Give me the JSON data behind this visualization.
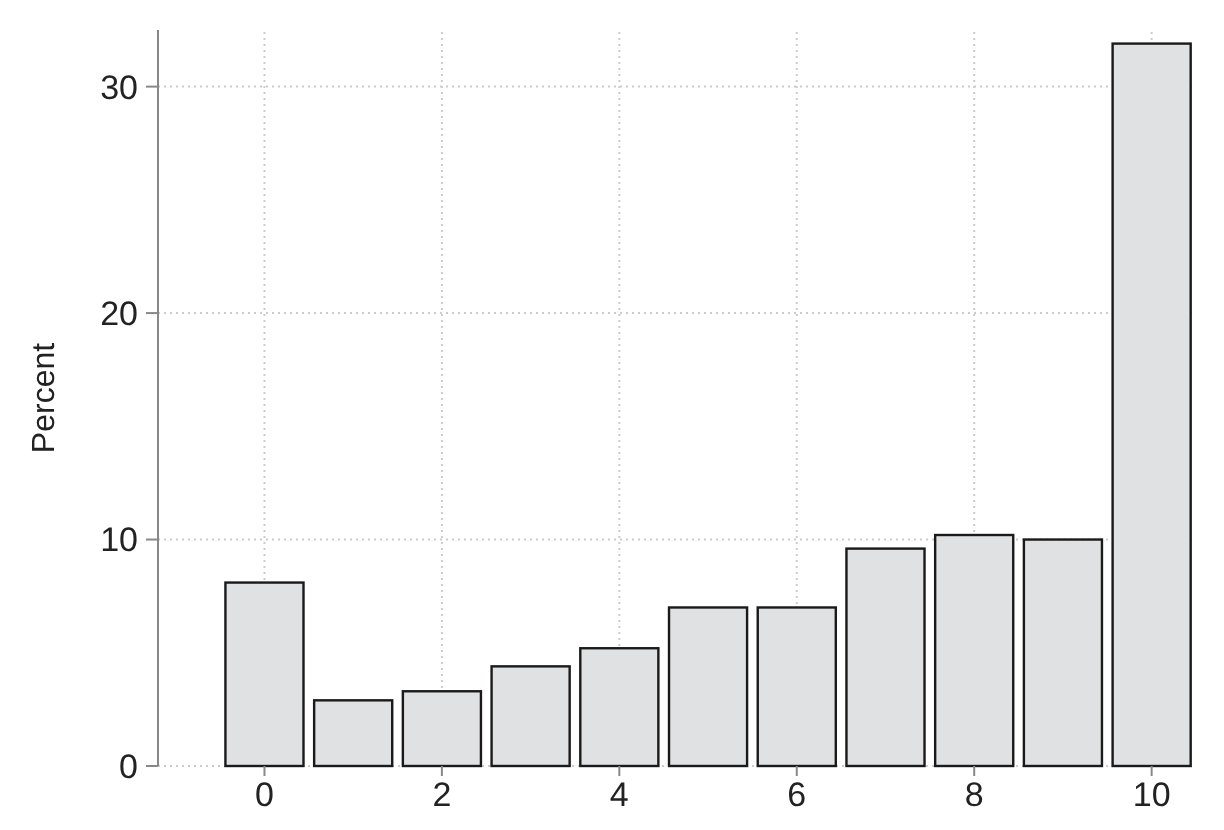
{
  "chart_data": {
    "type": "bar",
    "ylabel": "Percent",
    "x": [
      0,
      1,
      2,
      3,
      4,
      5,
      6,
      7,
      8,
      9,
      10
    ],
    "values": [
      8.1,
      2.9,
      3.3,
      4.4,
      5.2,
      7.0,
      7.0,
      9.6,
      10.2,
      10.0,
      31.9
    ],
    "color": "#e0e1e3",
    "xlim": [
      -1.2,
      10.5
    ],
    "xticks": [
      0,
      2,
      4,
      6,
      8,
      10
    ],
    "ylim": [
      0,
      32.5
    ],
    "yticks": [
      0,
      10,
      20,
      30
    ],
    "grid": true
  }
}
